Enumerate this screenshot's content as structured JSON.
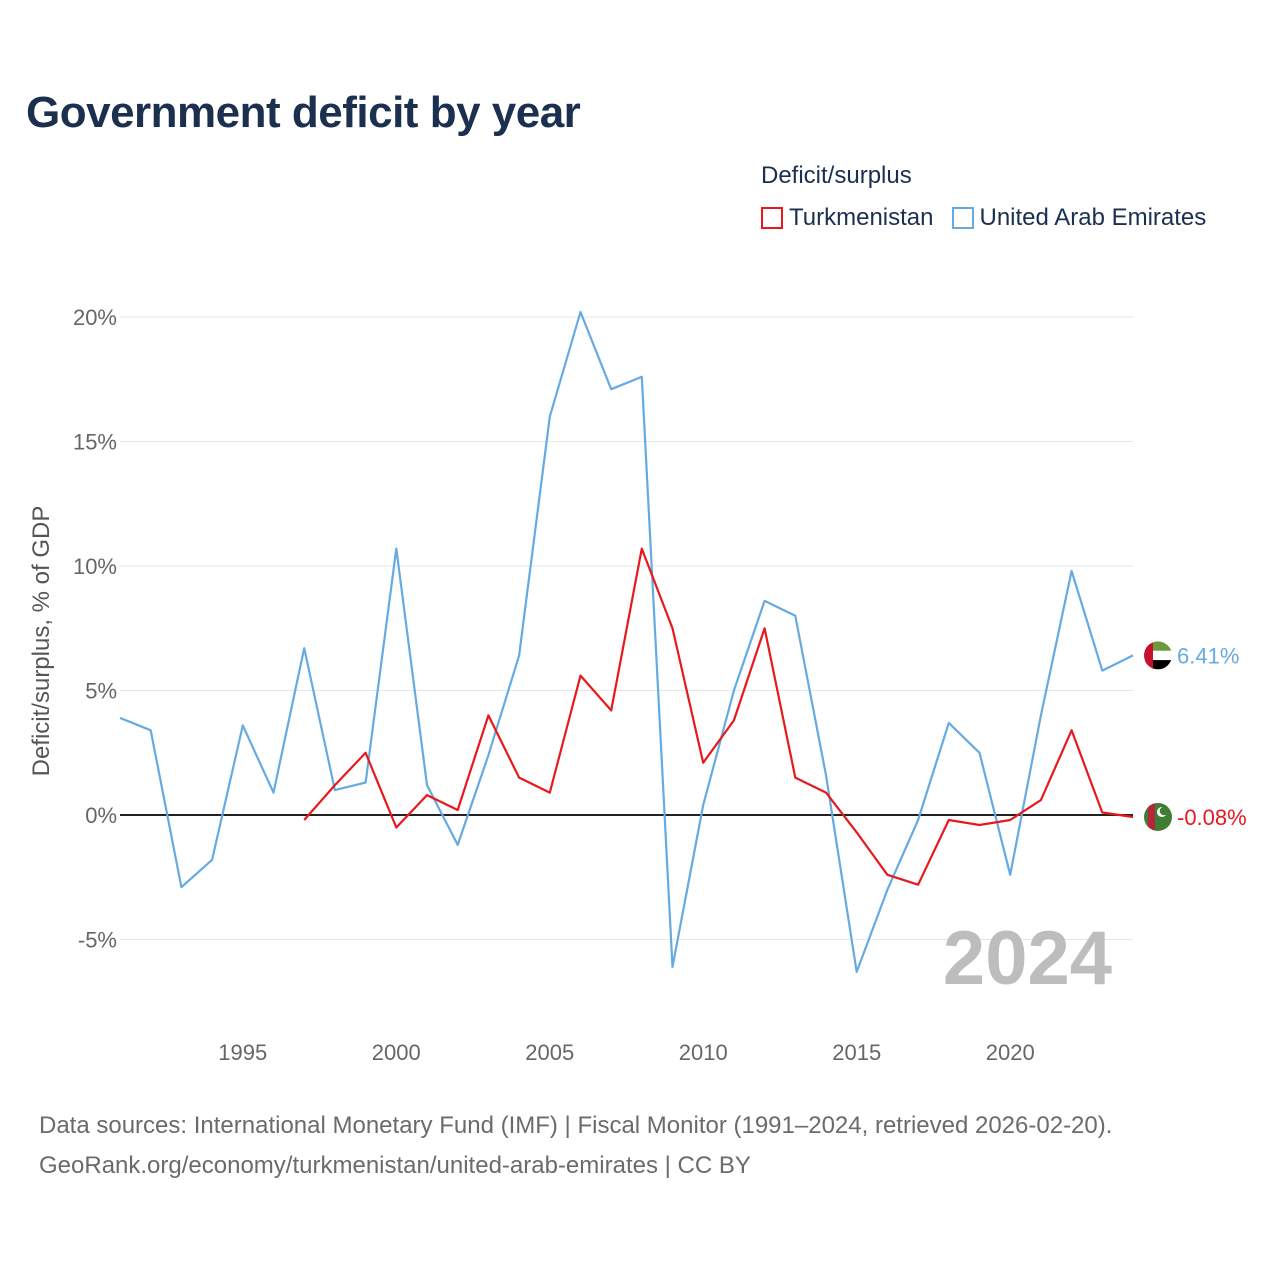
{
  "title": "Government deficit by year",
  "legend_title": "Deficit/surplus",
  "colors": {
    "turkmenistan": "#e8191c",
    "uae": "#66aae2",
    "title": "#1b2f4f",
    "zero_line": "#222222",
    "grid": "#e6e6e6"
  },
  "footer": {
    "line1": "Data sources: International Monetary Fund (IMF) | Fiscal Monitor (1991–2024, retrieved 2026-02-20).",
    "line2": "GeoRank.org/economy/turkmenistan/united-arab-emirates | CC BY"
  },
  "chart_data": {
    "type": "line",
    "ylabel": "Deficit/surplus, % of GDP",
    "xlabel": "",
    "xlim": [
      1991,
      2024
    ],
    "ylim": [
      -7,
      22
    ],
    "yticks": [
      20,
      15,
      10,
      5,
      0,
      -5
    ],
    "ytick_labels": [
      "20%",
      "15%",
      "10%",
      "5%",
      "0%",
      "-5%"
    ],
    "xticks": [
      1995,
      2000,
      2005,
      2010,
      2015,
      2020
    ],
    "xtick_labels": [
      "1995",
      "2000",
      "2005",
      "2010",
      "2015",
      "2020"
    ],
    "year_watermark": "2024",
    "series": [
      {
        "name": "Turkmenistan",
        "key": "turkmenistan",
        "x": [
          1997,
          1998,
          1999,
          2000,
          2001,
          2002,
          2003,
          2004,
          2005,
          2006,
          2007,
          2008,
          2009,
          2010,
          2011,
          2012,
          2013,
          2014,
          2015,
          2016,
          2017,
          2018,
          2019,
          2020,
          2021,
          2022,
          2023,
          2024
        ],
        "values": [
          -0.2,
          1.2,
          2.5,
          -0.5,
          0.8,
          0.2,
          4.0,
          1.5,
          0.9,
          5.6,
          4.2,
          10.7,
          7.5,
          2.1,
          3.8,
          7.5,
          1.5,
          0.9,
          -0.7,
          -2.4,
          -2.8,
          -0.2,
          -0.4,
          -0.2,
          0.6,
          3.4,
          0.1,
          -0.08
        ],
        "end_label": "-0.08%"
      },
      {
        "name": "United Arab Emirates",
        "key": "uae",
        "x": [
          1991,
          1992,
          1993,
          1994,
          1995,
          1996,
          1997,
          1998,
          1999,
          2000,
          2001,
          2002,
          2003,
          2004,
          2005,
          2006,
          2007,
          2008,
          2009,
          2010,
          2011,
          2012,
          2013,
          2014,
          2015,
          2016,
          2017,
          2018,
          2019,
          2020,
          2021,
          2022,
          2023,
          2024
        ],
        "values": [
          3.9,
          3.4,
          -2.9,
          -1.8,
          3.6,
          0.9,
          6.7,
          1.0,
          1.3,
          10.7,
          1.2,
          -1.2,
          2.4,
          6.4,
          16.0,
          20.2,
          17.1,
          17.6,
          -6.1,
          0.4,
          5.0,
          8.6,
          8.0,
          1.6,
          -6.3,
          -3.0,
          -0.2,
          3.7,
          2.5,
          -2.4,
          4.0,
          9.8,
          5.8,
          6.41
        ],
        "end_label": "6.41%"
      }
    ]
  }
}
